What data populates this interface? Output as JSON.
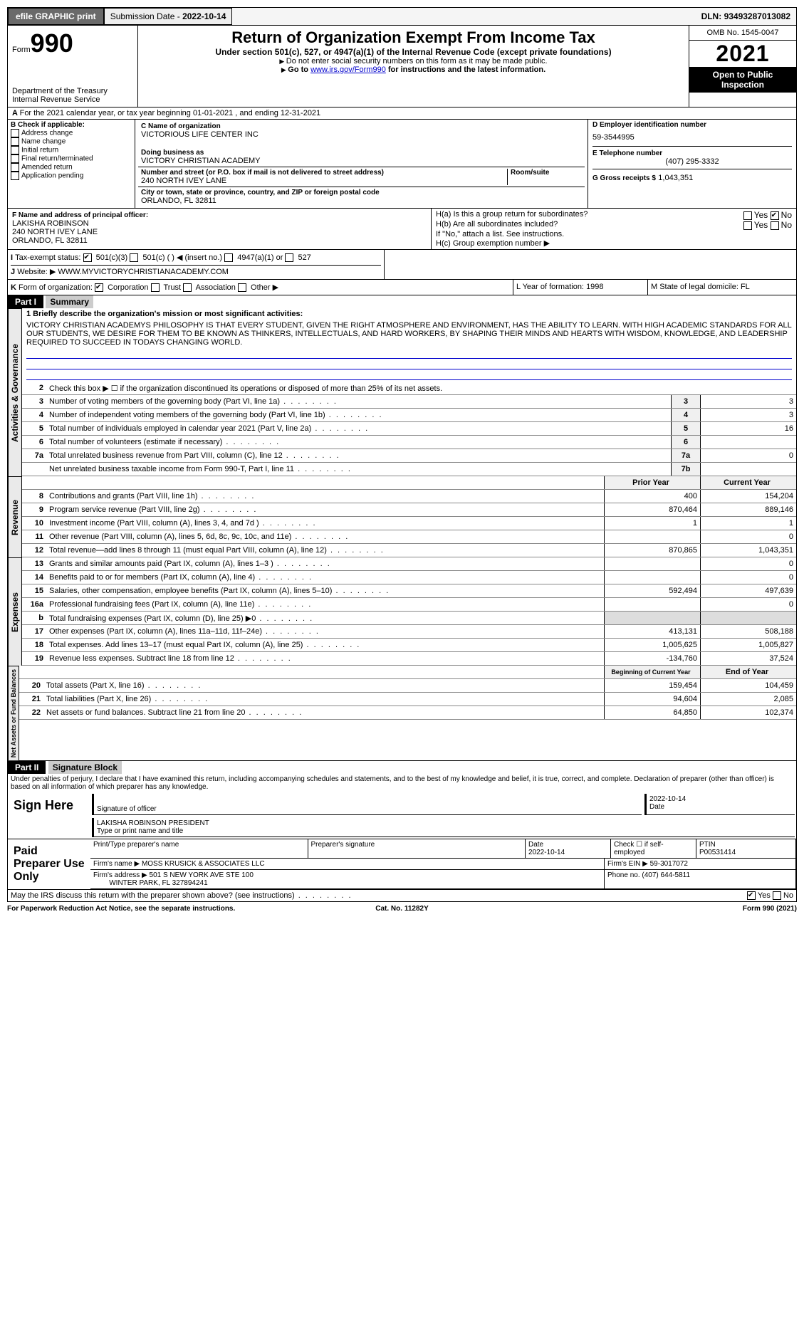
{
  "topbar": {
    "efile": "efile GRAPHIC print",
    "submission_label": "Submission Date - ",
    "submission_date": "2022-10-14",
    "dln_label": "DLN: ",
    "dln": "93493287013082"
  },
  "header": {
    "form_prefix": "Form",
    "form_num": "990",
    "dept": "Department of the Treasury",
    "irs": "Internal Revenue Service",
    "title": "Return of Organization Exempt From Income Tax",
    "sub": "Under section 501(c), 527, or 4947(a)(1) of the Internal Revenue Code (except private foundations)",
    "note1": "Do not enter social security numbers on this form as it may be made public.",
    "note2_a": "Go to ",
    "note2_link": "www.irs.gov/Form990",
    "note2_b": " for instructions and the latest information.",
    "omb": "OMB No. 1545-0047",
    "year": "2021",
    "inspect": "Open to Public Inspection"
  },
  "A": {
    "text": "For the 2021 calendar year, or tax year beginning 01-01-2021   , and ending 12-31-2021"
  },
  "B": {
    "label": "B Check if applicable:",
    "items": [
      "Address change",
      "Name change",
      "Initial return",
      "Final return/terminated",
      "Amended return",
      "Application pending"
    ]
  },
  "C": {
    "name_lbl": "C Name of organization",
    "name": "VICTORIOUS LIFE CENTER INC",
    "dba_lbl": "Doing business as",
    "dba": "VICTORY CHRISTIAN ACADEMY",
    "addr_lbl": "Number and street (or P.O. box if mail is not delivered to street address)",
    "room_lbl": "Room/suite",
    "addr": "240 NORTH IVEY LANE",
    "city_lbl": "City or town, state or province, country, and ZIP or foreign postal code",
    "city": "ORLANDO, FL  32811"
  },
  "D": {
    "lbl": "D Employer identification number",
    "val": "59-3544995"
  },
  "E": {
    "lbl": "E Telephone number",
    "val": "(407) 295-3332"
  },
  "G": {
    "lbl": "G Gross receipts $",
    "val": "1,043,351"
  },
  "F": {
    "lbl": "F  Name and address of principal officer:",
    "name": "LAKISHA ROBINSON",
    "addr1": "240 NORTH IVEY LANE",
    "addr2": "ORLANDO, FL  32811"
  },
  "H": {
    "a": "H(a)  Is this a group return for subordinates?",
    "b": "H(b)  Are all subordinates included?",
    "b_note": "If \"No,\" attach a list. See instructions.",
    "c": "H(c)  Group exemption number ▶",
    "yes": "Yes",
    "no": "No"
  },
  "I": {
    "lbl": "Tax-exempt status:",
    "opts": [
      "501(c)(3)",
      "501(c) (  ) ◀ (insert no.)",
      "4947(a)(1) or",
      "527"
    ]
  },
  "J": {
    "lbl": "Website: ▶",
    "val": "WWW.MYVICTORYCHRISTIANACADEMY.COM"
  },
  "K": {
    "lbl": "Form of organization:",
    "opts": [
      "Corporation",
      "Trust",
      "Association",
      "Other ▶"
    ]
  },
  "L": {
    "lbl": "L Year of formation:",
    "val": "1998"
  },
  "M": {
    "lbl": "M State of legal domicile:",
    "val": "FL"
  },
  "part1": {
    "hdr": "Part I",
    "title": "Summary",
    "l1_lbl": "1  Briefly describe the organization's mission or most significant activities:",
    "mission": "VICTORY CHRISTIAN ACADEMYS PHILOSOPHY IS THAT EVERY STUDENT, GIVEN THE RIGHT ATMOSPHERE AND ENVIRONMENT, HAS THE ABILITY TO LEARN. WITH HIGH ACADEMIC STANDARDS FOR ALL OUR STUDENTS, WE DESIRE FOR THEM TO BE KNOWN AS THINKERS, INTELLECTUALS, AND HARD WORKERS, BY SHAPING THEIR MINDS AND HEARTS WITH WISDOM, KNOWLEDGE, AND LEADERSHIP REQUIRED TO SUCCEED IN TODAYS CHANGING WORLD.",
    "l2": "Check this box ▶ ☐  if the organization discontinued its operations or disposed of more than 25% of its net assets.",
    "lines_single": [
      {
        "n": "3",
        "t": "Number of voting members of the governing body (Part VI, line 1a)",
        "box": "3",
        "v": "3"
      },
      {
        "n": "4",
        "t": "Number of independent voting members of the governing body (Part VI, line 1b)",
        "box": "4",
        "v": "3"
      },
      {
        "n": "5",
        "t": "Total number of individuals employed in calendar year 2021 (Part V, line 2a)",
        "box": "5",
        "v": "16"
      },
      {
        "n": "6",
        "t": "Total number of volunteers (estimate if necessary)",
        "box": "6",
        "v": ""
      },
      {
        "n": "7a",
        "t": "Total unrelated business revenue from Part VIII, column (C), line 12",
        "box": "7a",
        "v": "0"
      },
      {
        "n": "",
        "t": "Net unrelated business taxable income from Form 990-T, Part I, line 11",
        "box": "7b",
        "v": ""
      }
    ],
    "col_prior": "Prior Year",
    "col_curr": "Current Year",
    "revenue": [
      {
        "n": "8",
        "t": "Contributions and grants (Part VIII, line 1h)",
        "p": "400",
        "c": "154,204"
      },
      {
        "n": "9",
        "t": "Program service revenue (Part VIII, line 2g)",
        "p": "870,464",
        "c": "889,146"
      },
      {
        "n": "10",
        "t": "Investment income (Part VIII, column (A), lines 3, 4, and 7d )",
        "p": "1",
        "c": "1"
      },
      {
        "n": "11",
        "t": "Other revenue (Part VIII, column (A), lines 5, 6d, 8c, 9c, 10c, and 11e)",
        "p": "",
        "c": "0"
      },
      {
        "n": "12",
        "t": "Total revenue—add lines 8 through 11 (must equal Part VIII, column (A), line 12)",
        "p": "870,865",
        "c": "1,043,351"
      }
    ],
    "expenses": [
      {
        "n": "13",
        "t": "Grants and similar amounts paid (Part IX, column (A), lines 1–3 )",
        "p": "",
        "c": "0"
      },
      {
        "n": "14",
        "t": "Benefits paid to or for members (Part IX, column (A), line 4)",
        "p": "",
        "c": "0"
      },
      {
        "n": "15",
        "t": "Salaries, other compensation, employee benefits (Part IX, column (A), lines 5–10)",
        "p": "592,494",
        "c": "497,639"
      },
      {
        "n": "16a",
        "t": "Professional fundraising fees (Part IX, column (A), line 11e)",
        "p": "",
        "c": "0"
      },
      {
        "n": "b",
        "t": "Total fundraising expenses (Part IX, column (D), line 25) ▶0",
        "p": "shade",
        "c": "shade"
      },
      {
        "n": "17",
        "t": "Other expenses (Part IX, column (A), lines 11a–11d, 11f–24e)",
        "p": "413,131",
        "c": "508,188"
      },
      {
        "n": "18",
        "t": "Total expenses. Add lines 13–17 (must equal Part IX, column (A), line 25)",
        "p": "1,005,625",
        "c": "1,005,827"
      },
      {
        "n": "19",
        "t": "Revenue less expenses. Subtract line 18 from line 12",
        "p": "-134,760",
        "c": "37,524"
      }
    ],
    "col_begin": "Beginning of Current Year",
    "col_end": "End of Year",
    "netassets": [
      {
        "n": "20",
        "t": "Total assets (Part X, line 16)",
        "p": "159,454",
        "c": "104,459"
      },
      {
        "n": "21",
        "t": "Total liabilities (Part X, line 26)",
        "p": "94,604",
        "c": "2,085"
      },
      {
        "n": "22",
        "t": "Net assets or fund balances. Subtract line 21 from line 20",
        "p": "64,850",
        "c": "102,374"
      }
    ],
    "vtab1": "Activities & Governance",
    "vtab2": "Revenue",
    "vtab3": "Expenses",
    "vtab4": "Net Assets or Fund Balances"
  },
  "part2": {
    "hdr": "Part II",
    "title": "Signature Block",
    "decl": "Under penalties of perjury, I declare that I have examined this return, including accompanying schedules and statements, and to the best of my knowledge and belief, it is true, correct, and complete. Declaration of preparer (other than officer) is based on all information of which preparer has any knowledge.",
    "sign_here": "Sign Here",
    "sig_officer": "Signature of officer",
    "date": "Date",
    "date_v": "2022-10-14",
    "name_title": "LAKISHA ROBINSON  PRESIDENT",
    "type_name": "Type or print name and title",
    "paid": "Paid Preparer Use Only",
    "p_name_lbl": "Print/Type preparer's name",
    "p_sig_lbl": "Preparer's signature",
    "p_date_lbl": "Date",
    "p_date": "2022-10-14",
    "p_self": "Check ☐ if self-employed",
    "ptin_lbl": "PTIN",
    "ptin": "P00531414",
    "firm_name_lbl": "Firm's name   ▶",
    "firm_name": "MOSS KRUSICK & ASSOCIATES LLC",
    "firm_ein_lbl": "Firm's EIN ▶",
    "firm_ein": "59-3017072",
    "firm_addr_lbl": "Firm's address ▶",
    "firm_addr1": "501 S NEW YORK AVE STE 100",
    "firm_addr2": "WINTER PARK, FL  327894241",
    "phone_lbl": "Phone no.",
    "phone": "(407) 644-5811",
    "discuss": "May the IRS discuss this return with the preparer shown above? (see instructions)",
    "yes": "Yes",
    "no": "No"
  },
  "footer": {
    "left": "For Paperwork Reduction Act Notice, see the separate instructions.",
    "mid": "Cat. No. 11282Y",
    "right": "Form 990 (2021)"
  }
}
